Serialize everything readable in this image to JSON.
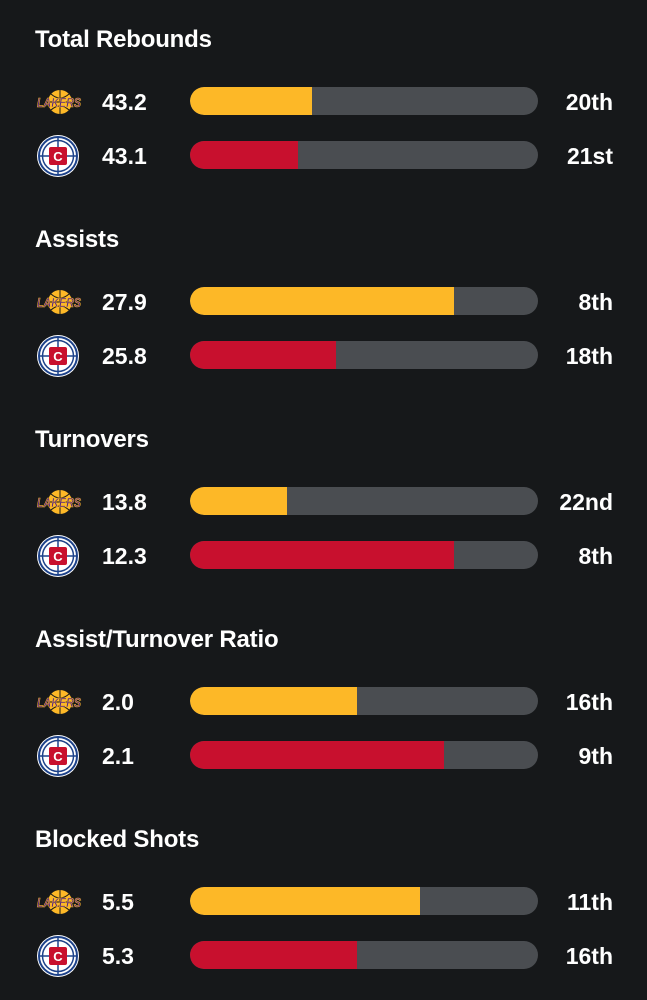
{
  "colors": {
    "background": "#16181a",
    "track": "#4a4d51",
    "lakers": "#fdb827",
    "clippers": "#c8102e",
    "lakers_purple": "#552583"
  },
  "teams": {
    "lakers": {
      "logo_text": "LAKERS",
      "icon": "lakers-logo-icon"
    },
    "clippers": {
      "icon": "clippers-logo-icon"
    }
  },
  "chart_data": {
    "type": "bar",
    "sections": [
      {
        "title": "Total Rebounds",
        "rows": [
          {
            "team": "lakers",
            "value": "43.2",
            "rank": "20th",
            "fill": 0.35
          },
          {
            "team": "clippers",
            "value": "43.1",
            "rank": "21st",
            "fill": 0.31
          }
        ]
      },
      {
        "title": "Assists",
        "rows": [
          {
            "team": "lakers",
            "value": "27.9",
            "rank": "8th",
            "fill": 0.76
          },
          {
            "team": "clippers",
            "value": "25.8",
            "rank": "18th",
            "fill": 0.42
          }
        ]
      },
      {
        "title": "Turnovers",
        "rows": [
          {
            "team": "lakers",
            "value": "13.8",
            "rank": "22nd",
            "fill": 0.28
          },
          {
            "team": "clippers",
            "value": "12.3",
            "rank": "8th",
            "fill": 0.76
          }
        ]
      },
      {
        "title": "Assist/Turnover Ratio",
        "rows": [
          {
            "team": "lakers",
            "value": "2.0",
            "rank": "16th",
            "fill": 0.48
          },
          {
            "team": "clippers",
            "value": "2.1",
            "rank": "9th",
            "fill": 0.73
          }
        ]
      },
      {
        "title": "Blocked Shots",
        "rows": [
          {
            "team": "lakers",
            "value": "5.5",
            "rank": "11th",
            "fill": 0.66
          },
          {
            "team": "clippers",
            "value": "5.3",
            "rank": "16th",
            "fill": 0.48
          }
        ]
      }
    ]
  }
}
